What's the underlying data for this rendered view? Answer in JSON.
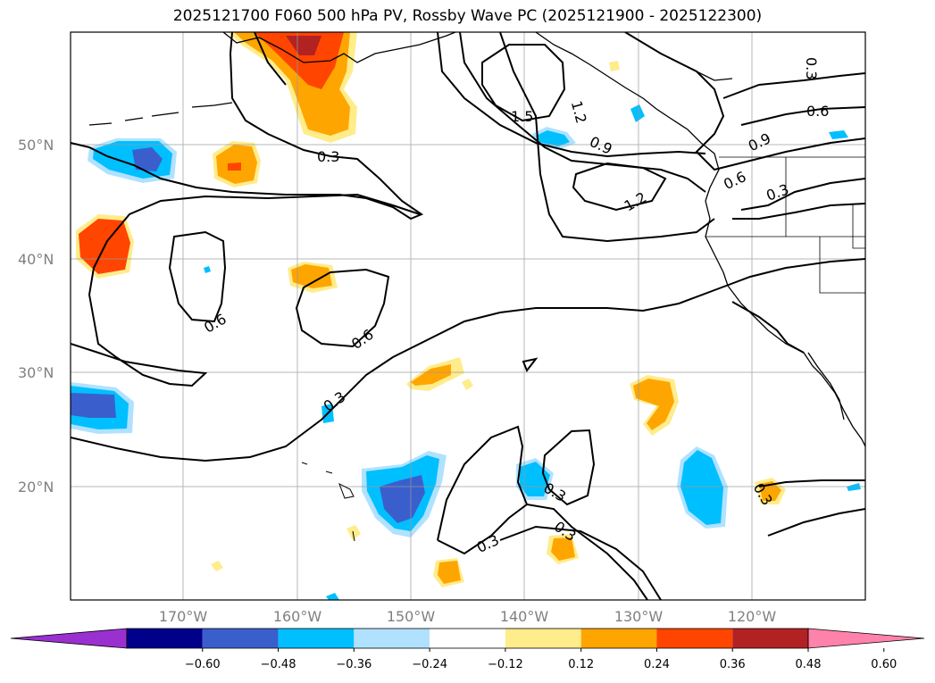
{
  "title": "2025121700 F060 500 hPa PV, Rossby Wave PC (2025121900 - 2025122300)",
  "lat_labels": [
    "50°N",
    "40°N",
    "30°N",
    "20°N"
  ],
  "lon_labels": [
    "170°W",
    "160°W",
    "150°W",
    "140°W",
    "130°W",
    "120°W"
  ],
  "contour_labels": [
    "0.3",
    "0.6",
    "0.9",
    "1.2",
    "1.5"
  ],
  "colorbar": {
    "ticks": [
      "−0.60",
      "−0.48",
      "−0.36",
      "−0.24",
      "−0.12",
      "0.12",
      "0.24",
      "0.36",
      "0.48",
      "0.60"
    ],
    "colors": [
      "#9b30d0",
      "#00008b",
      "#3a5fcd",
      "#00bfff",
      "#b0e2ff",
      "#ffffff",
      "#ffec8b",
      "#ffa500",
      "#ff4500",
      "#b22222",
      "#ff82ab"
    ]
  }
}
